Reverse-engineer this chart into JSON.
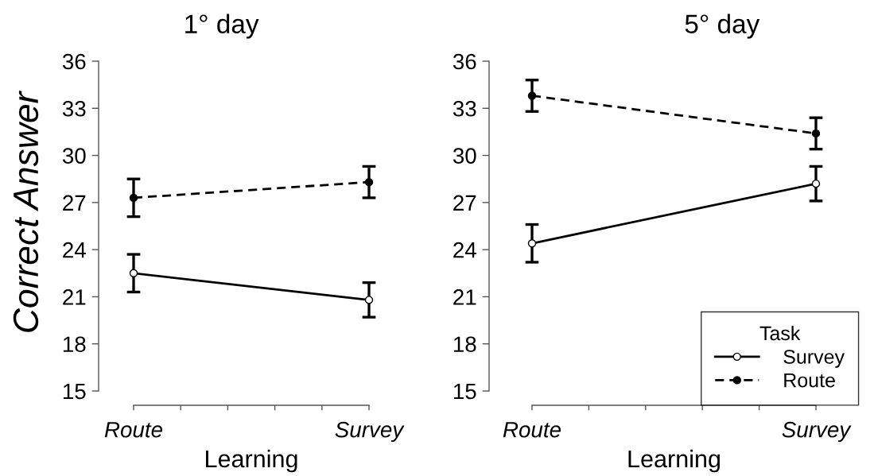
{
  "chart_data": [
    {
      "type": "line",
      "title": "1° day",
      "xlabel": "Learning",
      "ylabel": "Correct Answer",
      "categories": [
        "Route",
        "Survey"
      ],
      "ylim": [
        15,
        36
      ],
      "yticks": [
        15,
        18,
        21,
        24,
        27,
        30,
        33,
        36
      ],
      "marker": "circle",
      "series": [
        {
          "color": "#000000",
          "line_style": "solid",
          "values": [
            22.5,
            20.8
          ],
          "errors": [
            1.2,
            1.1
          ]
        },
        {
          "color": "#000000",
          "line_style": "dashed",
          "values": [
            27.3,
            28.3
          ],
          "errors": [
            1.2,
            1.0
          ]
        }
      ]
    },
    {
      "type": "line",
      "title": "5° day",
      "xlabel": "Learning",
      "categories": [
        "Route",
        "Survey"
      ],
      "ylim": [
        15,
        36
      ],
      "yticks": [
        15,
        18,
        21,
        24,
        27,
        30,
        33,
        36
      ],
      "marker": "circle",
      "legend": "bottom right",
      "legend_title": "Task",
      "series": [
        {
          "name": "Survey",
          "color": "#000000",
          "line_style": "solid",
          "values": [
            24.4,
            28.2
          ],
          "errors": [
            1.2,
            1.1
          ]
        },
        {
          "name": "Route",
          "color": "#000000",
          "line_style": "dashed",
          "values": [
            33.8,
            31.4
          ],
          "errors": [
            1.0,
            1.0
          ]
        }
      ]
    }
  ]
}
